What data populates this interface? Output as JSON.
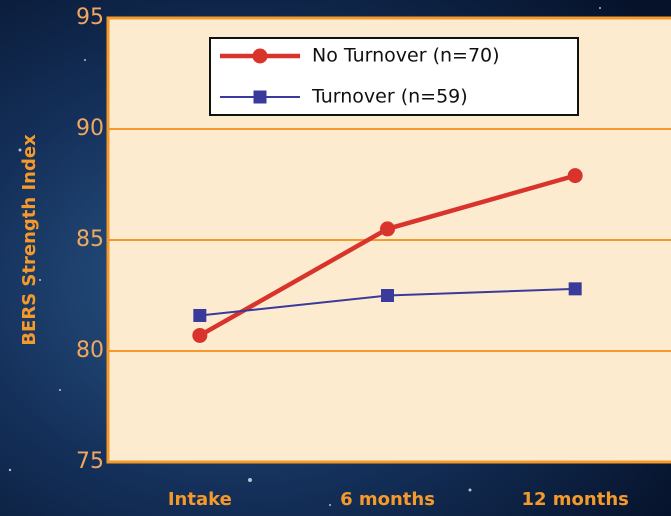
{
  "chart_data": {
    "type": "line",
    "y_label": "BERS Strength Index",
    "categories": [
      "Intake",
      "6 months",
      "12 months"
    ],
    "series": [
      {
        "name": "No Turnover (n=70)",
        "color": "#d9342b",
        "marker": "circle",
        "values": [
          80.7,
          85.5,
          87.9
        ]
      },
      {
        "name": "Turnover (n=59)",
        "color": "#3a3a9c",
        "marker": "square",
        "values": [
          81.6,
          82.5,
          82.8
        ]
      }
    ],
    "ylim": [
      75,
      95
    ],
    "yticks": [
      75,
      80,
      85,
      90,
      95
    ],
    "grid": true
  }
}
